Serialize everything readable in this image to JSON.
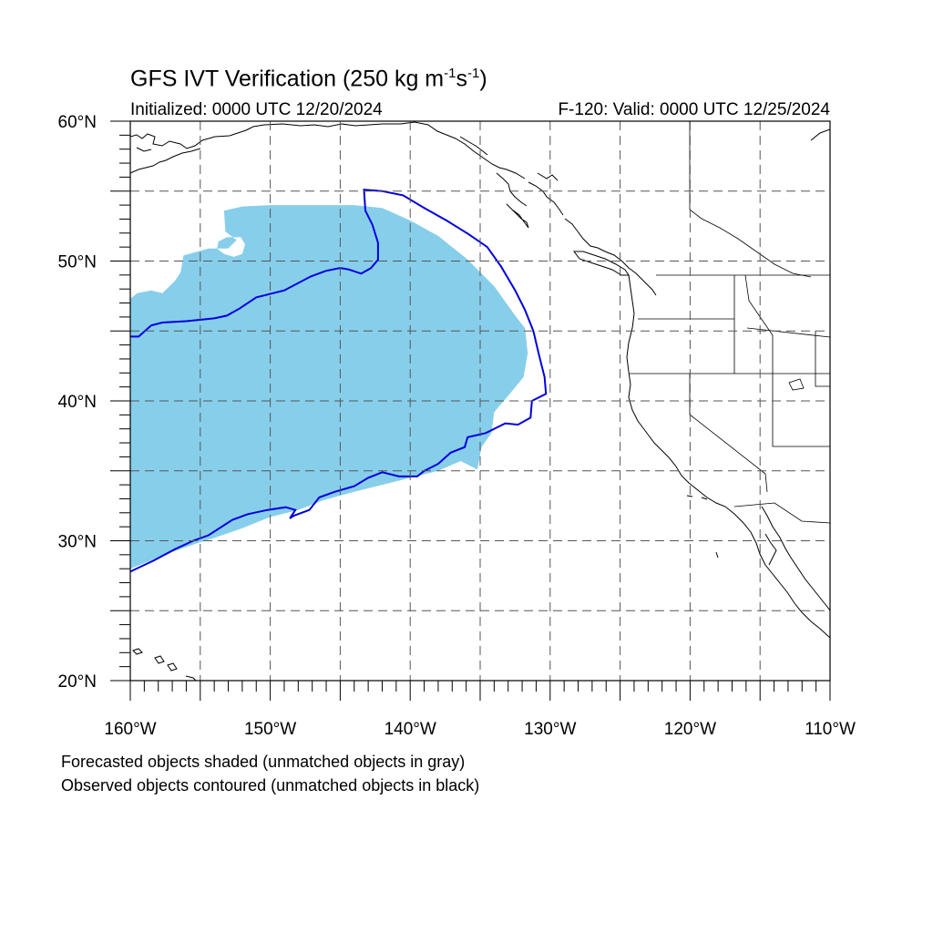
{
  "title": {
    "main": "GFS IVT Verification (250 kg m",
    "exp1": "-1",
    "mid": "s",
    "exp2": "-1",
    "end": ")"
  },
  "subtitle": {
    "left": "Initialized: 0000 UTC 12/20/2024",
    "right": "F-120: Valid: 0000 UTC 12/25/2024"
  },
  "notes": [
    "Forecasted objects shaded (unmatched objects in gray)",
    "Observed objects contoured (unmatched objects in black)"
  ],
  "colors": {
    "forecast_fill": "#87CEEB",
    "observed_contour": "#0000DD",
    "coastline": "#000000",
    "grid": "#555555"
  },
  "chart_data": {
    "type": "map",
    "projection": "cylindrical-equidistant",
    "lon_range": [
      -160,
      -110
    ],
    "lat_range": [
      20,
      60
    ],
    "gridlines": "dashed, every 5 degrees",
    "lat_labels": [
      {
        "value": 60,
        "label": "60°N"
      },
      {
        "value": 50,
        "label": "50°N"
      },
      {
        "value": 40,
        "label": "40°N"
      },
      {
        "value": 30,
        "label": "30°N"
      },
      {
        "value": 20,
        "label": "20°N"
      }
    ],
    "lon_labels": [
      {
        "value": -160,
        "label": "160°W"
      },
      {
        "value": -150,
        "label": "150°W"
      },
      {
        "value": -140,
        "label": "140°W"
      },
      {
        "value": -130,
        "label": "130°W"
      },
      {
        "value": -120,
        "label": "120°W"
      },
      {
        "value": -110,
        "label": "110°W"
      }
    ],
    "forecast_object": {
      "description": "shaded",
      "polygon_lonlat": [
        [
          -160,
          47.3
        ],
        [
          -159.5,
          47.7
        ],
        [
          -158.5,
          47.9
        ],
        [
          -157.7,
          47.7
        ],
        [
          -156.8,
          48.6
        ],
        [
          -156.4,
          49.2
        ],
        [
          -156.2,
          50.4
        ],
        [
          -154.4,
          50.9
        ],
        [
          -153,
          50.9
        ],
        [
          -152.4,
          51.5
        ],
        [
          -153.2,
          52.1
        ],
        [
          -153.3,
          53.6
        ],
        [
          -152,
          53.9
        ],
        [
          -150,
          54
        ],
        [
          -148,
          54
        ],
        [
          -146,
          54
        ],
        [
          -144,
          54
        ],
        [
          -142,
          53.8
        ],
        [
          -140,
          52.9
        ],
        [
          -138,
          51.8
        ],
        [
          -136,
          50.2
        ],
        [
          -134,
          48.2
        ],
        [
          -132.5,
          46.1
        ],
        [
          -131.8,
          45.2
        ],
        [
          -131.6,
          43.4
        ],
        [
          -131.9,
          41.7
        ],
        [
          -132.8,
          40.6
        ],
        [
          -134,
          39.2
        ],
        [
          -134.2,
          37.7
        ],
        [
          -134.9,
          36.7
        ],
        [
          -135.2,
          35.1
        ],
        [
          -136.4,
          35.7
        ],
        [
          -138,
          35
        ],
        [
          -140,
          34.5
        ],
        [
          -142,
          34
        ],
        [
          -144,
          33.5
        ],
        [
          -146.2,
          32.9
        ],
        [
          -148,
          32.2
        ],
        [
          -150,
          31.7
        ],
        [
          -152,
          30.9
        ],
        [
          -154,
          30.2
        ],
        [
          -155.3,
          29.8
        ],
        [
          -157,
          29.2
        ],
        [
          -158.5,
          28.6
        ],
        [
          -160,
          28
        ]
      ],
      "hole_lonlat": [
        [
          -153.7,
          51.4
        ],
        [
          -153.1,
          51.7
        ],
        [
          -152.1,
          51.7
        ],
        [
          -151.8,
          51.2
        ],
        [
          -152.0,
          50.5
        ],
        [
          -152.6,
          50.3
        ],
        [
          -153.3,
          50.5
        ],
        [
          -153.8,
          50.9
        ]
      ]
    },
    "observed_object": {
      "description": "contoured",
      "polygon_lonlat": [
        [
          -160,
          44.6
        ],
        [
          -159.4,
          44.6
        ],
        [
          -158.5,
          45.4
        ],
        [
          -157.7,
          45.6
        ],
        [
          -156,
          45.7
        ],
        [
          -154,
          45.9
        ],
        [
          -153.1,
          46.1
        ],
        [
          -152.2,
          46.6
        ],
        [
          -151,
          47.4
        ],
        [
          -149,
          47.9
        ],
        [
          -147.1,
          48.9
        ],
        [
          -146,
          49.3
        ],
        [
          -145,
          49.5
        ],
        [
          -144.4,
          49.4
        ],
        [
          -143.5,
          49.1
        ],
        [
          -142.8,
          49.5
        ],
        [
          -142.3,
          50.1
        ],
        [
          -142.3,
          51.3
        ],
        [
          -142.7,
          52.6
        ],
        [
          -143.2,
          53.6
        ],
        [
          -143.3,
          55.1
        ],
        [
          -142,
          55
        ],
        [
          -140.5,
          54.7
        ],
        [
          -139,
          53.8
        ],
        [
          -137.4,
          52.9
        ],
        [
          -135.8,
          51.9
        ],
        [
          -134.5,
          51
        ],
        [
          -133.5,
          49.6
        ],
        [
          -132.5,
          47.9
        ],
        [
          -131.8,
          46.5
        ],
        [
          -131.2,
          45
        ],
        [
          -130.8,
          43.3
        ],
        [
          -130.4,
          41.7
        ],
        [
          -130.3,
          40.5
        ],
        [
          -131.3,
          40
        ],
        [
          -131.4,
          38.8
        ],
        [
          -132.3,
          38.3
        ],
        [
          -133.2,
          38.4
        ],
        [
          -134.6,
          37.7
        ],
        [
          -135.9,
          37.4
        ],
        [
          -136.1,
          36.7
        ],
        [
          -137.1,
          36.3
        ],
        [
          -138,
          35.5
        ],
        [
          -139,
          35
        ],
        [
          -139.5,
          34.6
        ],
        [
          -140.8,
          34.6
        ],
        [
          -142,
          34.9
        ],
        [
          -143,
          34.5
        ],
        [
          -144,
          33.9
        ],
        [
          -145.4,
          33.5
        ],
        [
          -146.5,
          33.1
        ],
        [
          -147.2,
          32.2
        ],
        [
          -148.3,
          31.8
        ],
        [
          -148.6,
          31.6
        ],
        [
          -148.2,
          32.2
        ],
        [
          -148.9,
          32.4
        ],
        [
          -150.2,
          32.2
        ],
        [
          -151.6,
          31.9
        ],
        [
          -152.7,
          31.5
        ],
        [
          -154.4,
          30.4
        ],
        [
          -155.5,
          30
        ],
        [
          -156.8,
          29.4
        ],
        [
          -158.3,
          28.6
        ],
        [
          -160,
          27.8
        ]
      ]
    }
  }
}
